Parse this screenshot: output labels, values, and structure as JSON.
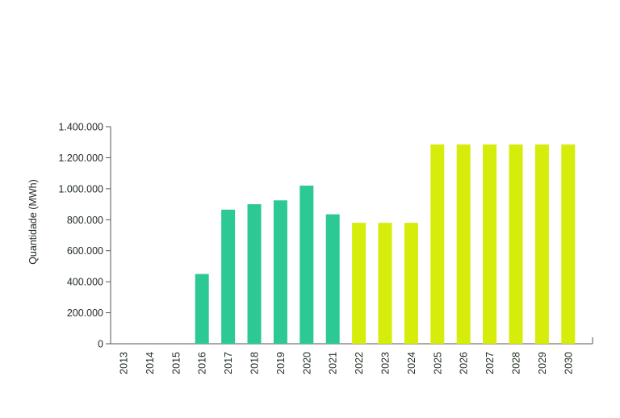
{
  "chart_data": {
    "type": "bar",
    "title": "",
    "xlabel": "",
    "ylabel": "Quantidade (MWh)",
    "ylim": [
      0,
      1400000
    ],
    "yticks": [
      0,
      200000,
      400000,
      600000,
      800000,
      1000000,
      1200000,
      1400000
    ],
    "ytick_labels": [
      "0",
      "200.000",
      "400.000",
      "600.000",
      "800.000",
      "1.000.000",
      "1.200.000",
      "1.400.000"
    ],
    "categories": [
      "2013",
      "2014",
      "2015",
      "2016",
      "2017",
      "2018",
      "2019",
      "2020",
      "2021",
      "2022",
      "2023",
      "2024",
      "2025",
      "2026",
      "2027",
      "2028",
      "2029",
      "2030"
    ],
    "values": [
      0,
      0,
      0,
      450000,
      865000,
      900000,
      925000,
      1020000,
      835000,
      780000,
      780000,
      780000,
      1285000,
      1285000,
      1285000,
      1285000,
      1285000,
      1285000
    ],
    "bar_colors": [
      "#2dc994",
      "#2dc994",
      "#2dc994",
      "#2dc994",
      "#2dc994",
      "#2dc994",
      "#2dc994",
      "#2dc994",
      "#2dc994",
      "#d6ec0a",
      "#d6ec0a",
      "#d6ec0a",
      "#d6ec0a",
      "#d6ec0a",
      "#d6ec0a",
      "#d6ec0a",
      "#d6ec0a",
      "#d6ec0a"
    ],
    "grid": false,
    "legend": "none"
  }
}
